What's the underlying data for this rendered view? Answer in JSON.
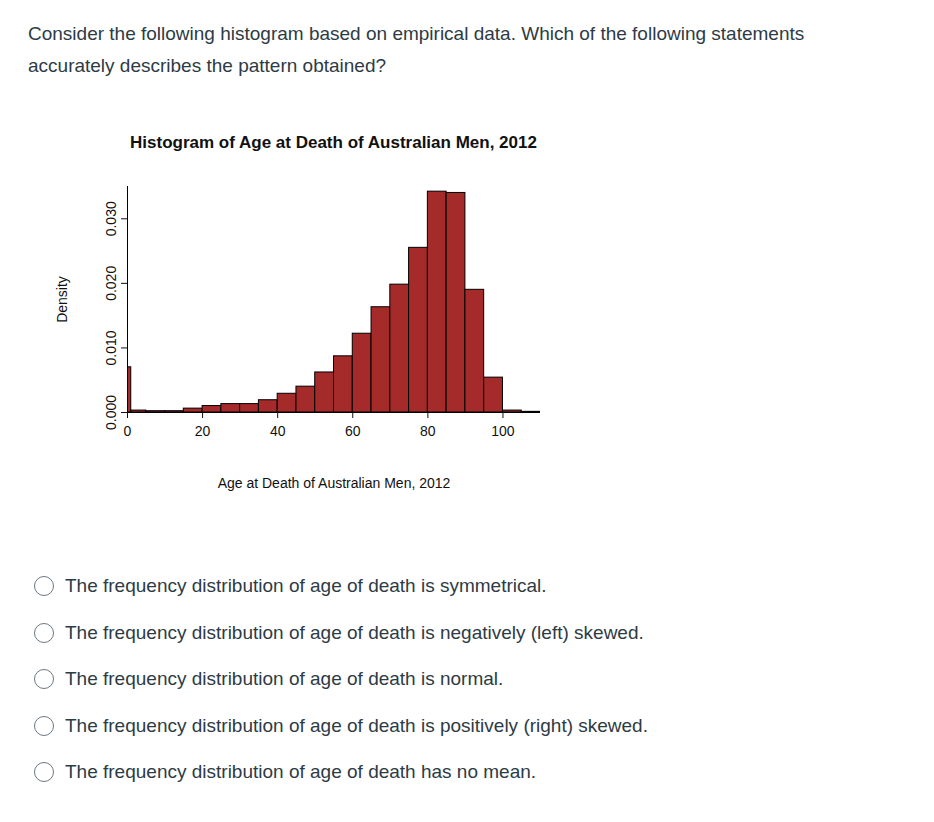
{
  "question": "Consider the following histogram based on empirical data. Which of the following statements accurately describes the pattern obtained?",
  "chart_data": {
    "type": "histogram",
    "title": "Histogram of Age at Death of Australian Men, 2012",
    "x_label": "Age at Death of Australian Men, 2012",
    "y_label": "Density",
    "bins": [
      0,
      1,
      5,
      10,
      15,
      20,
      25,
      30,
      35,
      40,
      45,
      50,
      55,
      60,
      65,
      70,
      75,
      80,
      85,
      90,
      95,
      100,
      105,
      110
    ],
    "values": [
      0.007,
      0.0003,
      0.0002,
      0.0002,
      0.0006,
      0.001,
      0.0013,
      0.0013,
      0.0019,
      0.0029,
      0.004,
      0.0062,
      0.0087,
      0.0122,
      0.0163,
      0.0198,
      0.0255,
      0.0342,
      0.034,
      0.019,
      0.0054,
      0.0003,
      0.0001
    ],
    "color": "#a52a2a",
    "xlim": [
      0,
      110
    ],
    "xticks": [
      0,
      20,
      40,
      60,
      80,
      100
    ],
    "ylim": [
      0,
      0.035
    ],
    "yticks": [
      {
        "value": 0,
        "label": "0.000"
      },
      {
        "value": 0.01,
        "label": "0.010"
      },
      {
        "value": 0.02,
        "label": "0.020"
      },
      {
        "value": 0.03,
        "label": "0.030"
      }
    ],
    "grid": false
  },
  "options": [
    "The frequency distribution of age of death is symmetrical.",
    "The frequency distribution of age of death is negatively (left) skewed.",
    "The frequency distribution of age of death is normal.",
    "The frequency distribution of age of death is positively (right) skewed.",
    "The frequency distribution of age of death has no mean."
  ]
}
